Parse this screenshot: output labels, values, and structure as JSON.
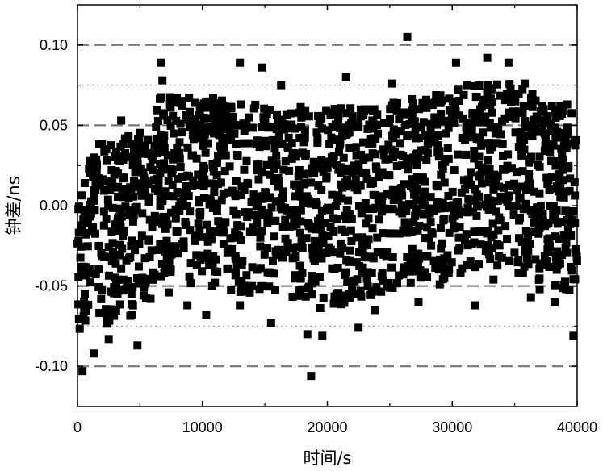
{
  "chart_data": {
    "type": "scatter",
    "title": "",
    "xlabel": "时间/s",
    "ylabel": "钟差/ns",
    "xlim": [
      0,
      40000
    ],
    "ylim": [
      -0.125,
      0.125
    ],
    "x_ticks": [
      0,
      10000,
      20000,
      30000,
      40000
    ],
    "x_tick_labels": [
      "0",
      "10000",
      "20000",
      "30000",
      "40000"
    ],
    "y_ticks": [
      -0.1,
      -0.05,
      0.0,
      0.05,
      0.1
    ],
    "y_tick_labels": [
      "-0.10",
      "-0.05",
      "0.00",
      "0.05",
      "0.10"
    ],
    "grid": false,
    "reference_lines": [
      {
        "y": 0.1,
        "style": "dashed"
      },
      {
        "y": 0.075,
        "style": "dotted"
      },
      {
        "y": 0.05,
        "style": "dashed"
      },
      {
        "y": -0.05,
        "style": "dashed"
      },
      {
        "y": -0.075,
        "style": "dotted"
      },
      {
        "y": -0.1,
        "style": "dashed"
      }
    ],
    "marker": "square",
    "marker_color": "#000000",
    "envelope": {
      "description_x": [
        0,
        2000,
        4000,
        6000,
        6500,
        10000,
        20000,
        26000,
        30000,
        34000,
        38000,
        40000
      ],
      "upper": [
        0.033,
        0.04,
        0.045,
        0.05,
        0.068,
        0.068,
        0.06,
        0.065,
        0.072,
        0.078,
        0.065,
        0.06
      ],
      "lower": [
        -0.08,
        -0.075,
        -0.07,
        -0.06,
        -0.045,
        -0.05,
        -0.065,
        -0.05,
        -0.045,
        -0.04,
        -0.05,
        -0.055
      ]
    },
    "outliers": [
      {
        "x": 400,
        "y": -0.103
      },
      {
        "x": 1300,
        "y": -0.092
      },
      {
        "x": 2500,
        "y": -0.083
      },
      {
        "x": 4800,
        "y": -0.087
      },
      {
        "x": 3500,
        "y": 0.053
      },
      {
        "x": 6700,
        "y": 0.089
      },
      {
        "x": 6800,
        "y": 0.078
      },
      {
        "x": 7300,
        "y": -0.054
      },
      {
        "x": 8800,
        "y": -0.062
      },
      {
        "x": 10300,
        "y": -0.068
      },
      {
        "x": 11000,
        "y": -0.048
      },
      {
        "x": 13000,
        "y": 0.089
      },
      {
        "x": 13000,
        "y": -0.062
      },
      {
        "x": 14800,
        "y": 0.086
      },
      {
        "x": 15500,
        "y": -0.073
      },
      {
        "x": 16300,
        "y": 0.075
      },
      {
        "x": 18400,
        "y": -0.08
      },
      {
        "x": 18700,
        "y": -0.106
      },
      {
        "x": 19600,
        "y": -0.081
      },
      {
        "x": 21500,
        "y": 0.08
      },
      {
        "x": 22500,
        "y": -0.076
      },
      {
        "x": 23800,
        "y": -0.065
      },
      {
        "x": 25200,
        "y": 0.076
      },
      {
        "x": 26400,
        "y": 0.105
      },
      {
        "x": 27300,
        "y": -0.06
      },
      {
        "x": 29000,
        "y": -0.049
      },
      {
        "x": 30300,
        "y": 0.089
      },
      {
        "x": 31200,
        "y": 0.075
      },
      {
        "x": 31800,
        "y": -0.062
      },
      {
        "x": 32800,
        "y": 0.092
      },
      {
        "x": 33300,
        "y": -0.046
      },
      {
        "x": 34500,
        "y": 0.089
      },
      {
        "x": 35800,
        "y": 0.076
      },
      {
        "x": 36300,
        "y": -0.057
      },
      {
        "x": 37000,
        "y": -0.052
      },
      {
        "x": 38200,
        "y": -0.06
      },
      {
        "x": 39200,
        "y": 0.063
      },
      {
        "x": 39700,
        "y": -0.081
      }
    ]
  }
}
